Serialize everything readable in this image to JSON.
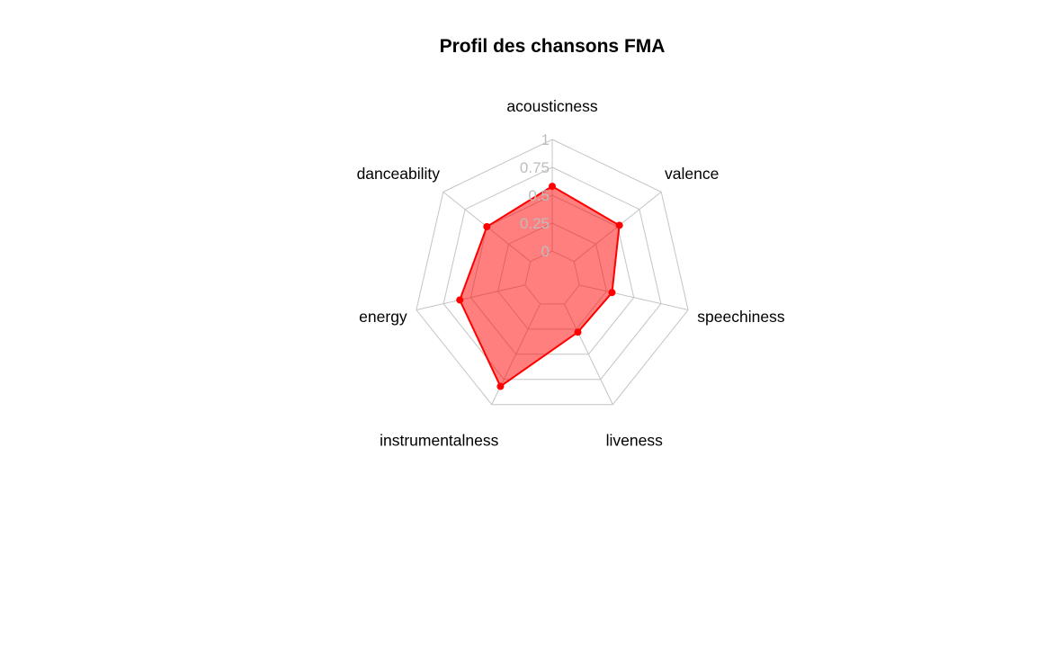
{
  "chart_data": {
    "type": "radar",
    "title": "Profil des chansons FMA",
    "axes": [
      "acousticness",
      "valence",
      "speechiness",
      "liveness",
      "instrumentalness",
      "energy",
      "danceability"
    ],
    "range": [
      0,
      1
    ],
    "tick_labels": [
      "0",
      "0.25",
      "0.5",
      "0.75",
      "1"
    ],
    "tick_values": [
      0,
      0.25,
      0.5,
      0.75,
      1
    ],
    "series": [
      {
        "values": [
          0.58,
          0.52,
          0.3,
          0.28,
          0.82,
          0.6,
          0.5
        ],
        "color": "#ff0000",
        "fill": "#ff0000",
        "fill_opacity": 0.5
      }
    ],
    "grid": true,
    "legend": false
  }
}
